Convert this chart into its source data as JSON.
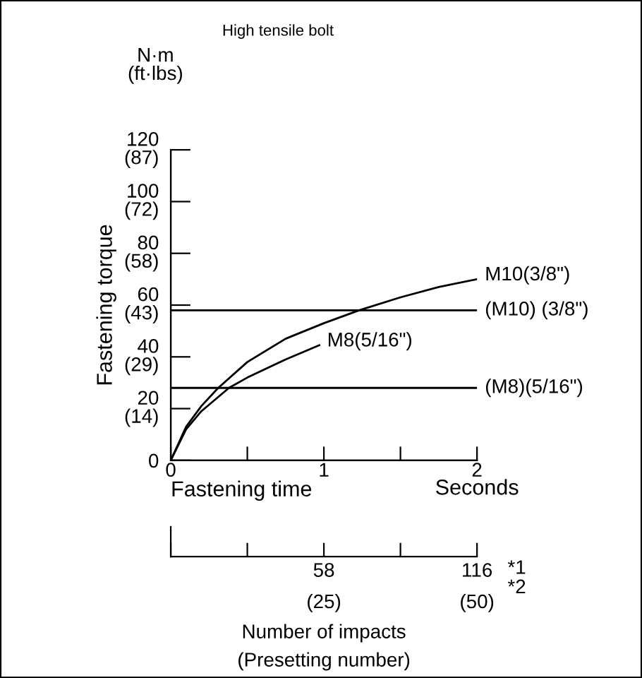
{
  "chart_data": {
    "type": "line",
    "title": "High tensile bolt",
    "xlabel": "Fastening time",
    "y2label": "Fastening torque",
    "x2label": "Number of impacts\n(Presetting number)",
    "annotations": [
      "N·m\n(ft·lbs)",
      "Seconds",
      "*1",
      "*2",
      "(25)",
      "(50)"
    ],
    "series": [
      {
        "name": "M10(3/8\")",
        "color": "#000000",
        "x": [
          0,
          0.1,
          0.2,
          0.31,
          0.5,
          0.75,
          1.0,
          1.23,
          1.5,
          1.75,
          2.0
        ],
        "values": [
          0,
          13,
          21,
          28,
          38,
          47,
          53,
          58,
          63,
          67,
          70
        ]
      },
      {
        "name": "M8(5/16\")",
        "color": "#000000",
        "x": [
          0,
          0.1,
          0.2,
          0.38,
          0.5,
          0.75,
          0.97
        ],
        "values": [
          0,
          12,
          19,
          28,
          32,
          39,
          44.5
        ]
      }
    ],
    "ref_lines": [
      {
        "axis": "y",
        "value": 58,
        "label": "(M10) (3/8\")",
        "color": "#000000"
      },
      {
        "axis": "y",
        "value": 28,
        "label": "(M8)(5/16\")",
        "color": "#000000"
      }
    ],
    "xlim": [
      0,
      2
    ],
    "xticks": [
      0,
      {
        "value": 0.5,
        "label": null
      },
      1,
      {
        "value": 1.5,
        "label": null
      },
      2
    ],
    "ylim": [
      0,
      120
    ],
    "yticks": [
      0,
      20,
      40,
      60,
      80,
      100,
      120
    ],
    "y2lim": [
      0,
      87
    ],
    "y2ticks": [
      {
        "value": 14.5,
        "label": "(14)"
      },
      {
        "value": 29,
        "label": "(29)"
      },
      {
        "value": 43.5,
        "label": "(43)"
      },
      {
        "value": 58,
        "label": "(58)"
      },
      {
        "value": 72.5,
        "label": "(72)"
      },
      {
        "value": 87,
        "label": "(87)"
      }
    ],
    "x2lim": [
      0,
      116
    ],
    "x2ticks": [
      {
        "value": 0,
        "label": null
      },
      {
        "value": 29,
        "label": null
      },
      58,
      {
        "value": 87,
        "label": null
      },
      116
    ],
    "grid": false,
    "legend": false,
    "marker": "none",
    "line_style": "solid"
  }
}
